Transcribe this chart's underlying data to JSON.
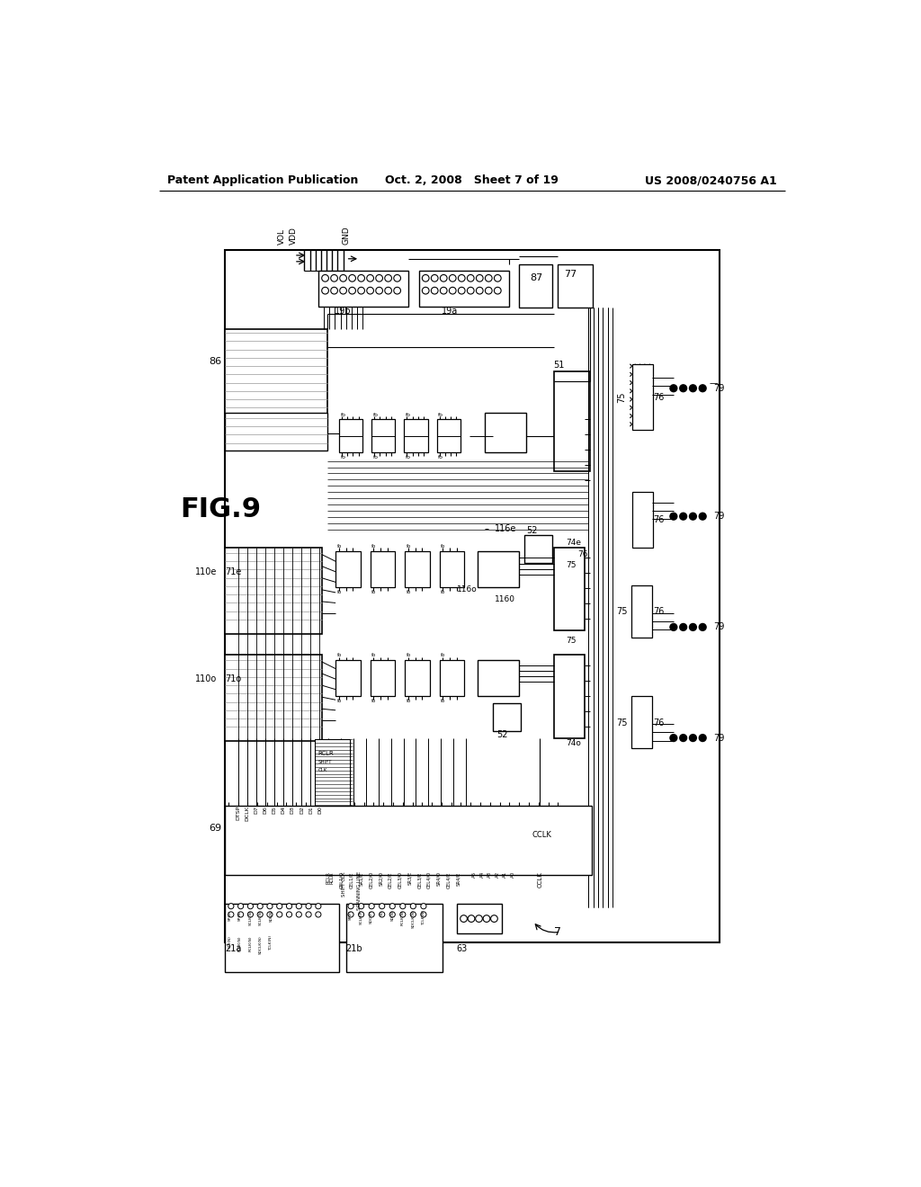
{
  "title_left": "Patent Application Publication",
  "title_center": "Oct. 2, 2008   Sheet 7 of 19",
  "title_right": "US 2008/0240756 A1",
  "fig_label": "FIG.9",
  "background_color": "#ffffff",
  "line_color": "#000000"
}
